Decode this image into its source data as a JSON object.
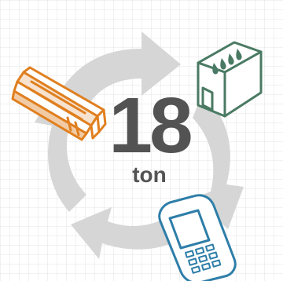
{
  "counter": {
    "value": "18",
    "unit": "ton"
  },
  "icons": {
    "toner": "toner-cartridge-icon",
    "ink": "ink-cartridge-icon",
    "phone": "mobile-phone-icon",
    "cycle": "recycle-arrows-icon"
  },
  "colors": {
    "grid": "#d9d9d9",
    "arrows": "#d8d8d8",
    "number": "#535353",
    "toner": "#e07f1f",
    "ink": "#4a7a63",
    "phone": "#2e7ea8"
  }
}
